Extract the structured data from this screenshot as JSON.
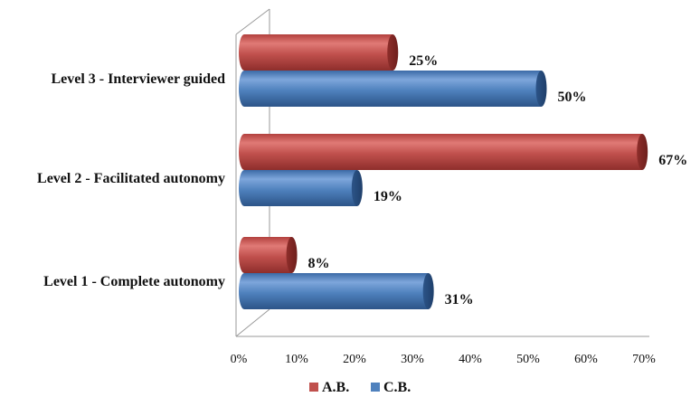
{
  "chart_data": {
    "type": "bar",
    "orientation": "horizontal",
    "style": "3d-cylinder",
    "categories": [
      "Level 3 - Interviewer guided",
      "Level 2 - Facilitated autonomy",
      "Level 1 - Complete autonomy"
    ],
    "series": [
      {
        "name": "A.B.",
        "color": "#c0504d",
        "values": [
          25,
          67,
          8
        ],
        "labels": [
          "25%",
          "67%",
          "8%"
        ]
      },
      {
        "name": "C.B.",
        "color": "#4f81bd",
        "values": [
          50,
          19,
          31
        ],
        "labels": [
          "50%",
          "19%",
          "31%"
        ]
      }
    ],
    "x_ticks": [
      "0%",
      "10%",
      "20%",
      "30%",
      "40%",
      "50%",
      "60%",
      "70%"
    ],
    "xlim": [
      0,
      70
    ],
    "grid": false,
    "legend_position": "bottom"
  }
}
